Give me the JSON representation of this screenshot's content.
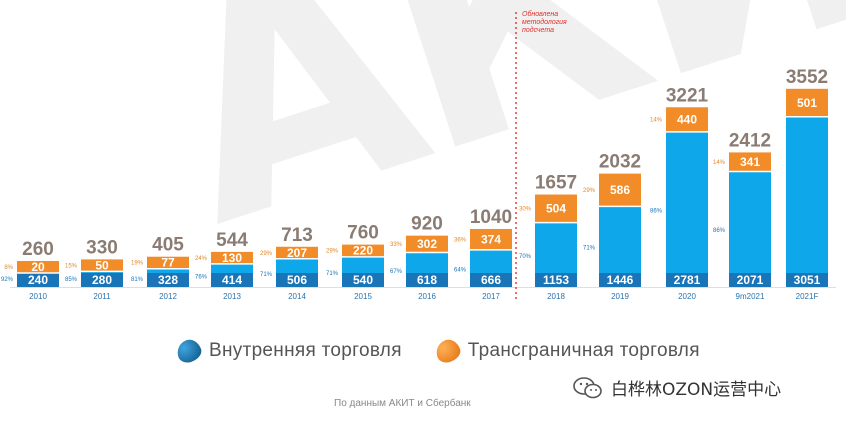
{
  "watermark": "АКИТ",
  "chart_data": {
    "type": "bar",
    "stacked": true,
    "categories": [
      "2010",
      "2011",
      "2012",
      "2013",
      "2014",
      "2015",
      "2016",
      "2017",
      "2018",
      "2019",
      "2020",
      "9m2021",
      "2021F"
    ],
    "series": [
      {
        "name": "Внутренняя торговля",
        "color": "#0ea8ea",
        "values": [
          240,
          280,
          328,
          414,
          506,
          540,
          618,
          666,
          1153,
          1446,
          2781,
          2071,
          3051
        ],
        "shares": [
          "92%",
          "85%",
          "81%",
          "76%",
          "71%",
          "71%",
          "67%",
          "64%",
          "70%",
          "71%",
          "86%",
          "86%",
          ""
        ]
      },
      {
        "name": "Трансграничная торговля",
        "color": "#f28c28",
        "values": [
          20,
          50,
          77,
          130,
          207,
          220,
          302,
          374,
          504,
          586,
          440,
          341,
          501
        ],
        "shares": [
          "8%",
          "15%",
          "19%",
          "24%",
          "29%",
          "29%",
          "33%",
          "36%",
          "30%",
          "29%",
          "14%",
          "14%",
          ""
        ]
      }
    ],
    "totals": [
      "260",
      "330",
      "405",
      "544",
      "713",
      "760",
      "920",
      "1040",
      "1657",
      "2032",
      "3221",
      "2412",
      "3552"
    ],
    "annotation": "Обновлена методология подсчета",
    "annotation_lines": [
      "Обновлена",
      "методология",
      "подсчета"
    ],
    "colors": {
      "domestic": "#0ea8ea",
      "domestic_dark": "#1a74b8",
      "cross_border": "#f28c28",
      "total_label": "#8a7c73",
      "annotation": "#e0312b"
    }
  },
  "legend": {
    "domestic_label": "Внутренняя торговля",
    "cross_label": "Трансграничная торговля"
  },
  "source": "По данным АКИТ и Сбербанк",
  "brand": "白桦林OZON运营中心"
}
